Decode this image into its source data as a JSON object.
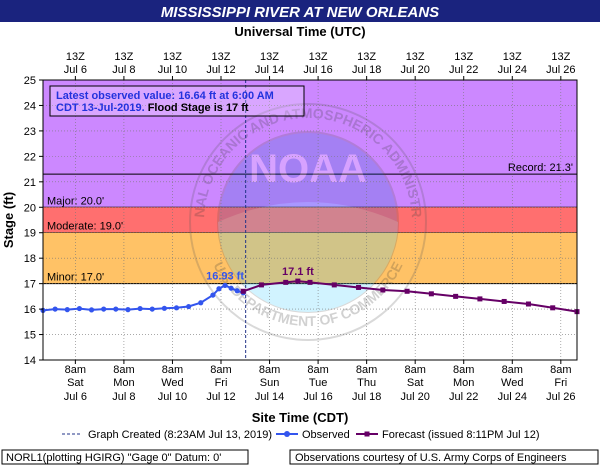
{
  "chart_data": {
    "type": "line",
    "title": "MISSISSIPPI RIVER AT NEW ORLEANS",
    "top_axis_title": "Universal Time (UTC)",
    "xlabel": "Site Time (CDT)",
    "ylabel": "Stage (ft)",
    "ylim": [
      14,
      25
    ],
    "y_ticks": [
      "14",
      "15",
      "16",
      "17",
      "18",
      "19",
      "20",
      "21",
      "22",
      "23",
      "24",
      "25"
    ],
    "x_range_days": [
      "2019-07-05",
      "2019-07-27"
    ],
    "bottom_ticks": [
      {
        "time": "8am",
        "day": "Sat",
        "date": "Jul 6"
      },
      {
        "time": "8am",
        "day": "Mon",
        "date": "Jul 8"
      },
      {
        "time": "8am",
        "day": "Wed",
        "date": "Jul 10"
      },
      {
        "time": "8am",
        "day": "Fri",
        "date": "Jul 12"
      },
      {
        "time": "8am",
        "day": "Sun",
        "date": "Jul 14"
      },
      {
        "time": "8am",
        "day": "Tue",
        "date": "Jul 16"
      },
      {
        "time": "8am",
        "day": "Thu",
        "date": "Jul 18"
      },
      {
        "time": "8am",
        "day": "Sat",
        "date": "Jul 20"
      },
      {
        "time": "8am",
        "day": "Mon",
        "date": "Jul 22"
      },
      {
        "time": "8am",
        "day": "Wed",
        "date": "Jul 24"
      },
      {
        "time": "8am",
        "day": "Fri",
        "date": "Jul 26"
      }
    ],
    "top_ticks": [
      {
        "time": "13Z",
        "date": "Jul 6"
      },
      {
        "time": "13Z",
        "date": "Jul 8"
      },
      {
        "time": "13Z",
        "date": "Jul 10"
      },
      {
        "time": "13Z",
        "date": "Jul 12"
      },
      {
        "time": "13Z",
        "date": "Jul 14"
      },
      {
        "time": "13Z",
        "date": "Jul 16"
      },
      {
        "time": "13Z",
        "date": "Jul 18"
      },
      {
        "time": "13Z",
        "date": "Jul 20"
      },
      {
        "time": "13Z",
        "date": "Jul 22"
      },
      {
        "time": "13Z",
        "date": "Jul 24"
      },
      {
        "time": "13Z",
        "date": "Jul 26"
      }
    ],
    "flood_categories": [
      {
        "label": "Major: 20.0'",
        "from": 20.0,
        "to": 25,
        "color": "#cc88ff"
      },
      {
        "label": "Moderate: 19.0'",
        "from": 19.0,
        "to": 20.0,
        "color": "#ff6f6f"
      },
      {
        "label": "Minor: 17.0'",
        "from": 17.0,
        "to": 19.0,
        "color": "#ffc266"
      }
    ],
    "record": {
      "label": "Record: 21.3'",
      "value": 21.3
    },
    "graph_created": "2019-07-13 08:23",
    "observed": {
      "name": "Observed",
      "color": "#3355ee",
      "points": [
        [
          "2019-07-05 00:00",
          15.95
        ],
        [
          "2019-07-05 12:00",
          16.0
        ],
        [
          "2019-07-06 00:00",
          15.98
        ],
        [
          "2019-07-06 12:00",
          16.02
        ],
        [
          "2019-07-07 00:00",
          15.97
        ],
        [
          "2019-07-07 12:00",
          16.0
        ],
        [
          "2019-07-08 00:00",
          16.0
        ],
        [
          "2019-07-08 12:00",
          15.98
        ],
        [
          "2019-07-09 00:00",
          16.02
        ],
        [
          "2019-07-09 12:00",
          16.0
        ],
        [
          "2019-07-10 00:00",
          16.03
        ],
        [
          "2019-07-10 12:00",
          16.05
        ],
        [
          "2019-07-11 00:00",
          16.1
        ],
        [
          "2019-07-11 12:00",
          16.25
        ],
        [
          "2019-07-12 00:00",
          16.55
        ],
        [
          "2019-07-12 06:00",
          16.8
        ],
        [
          "2019-07-12 12:00",
          16.93
        ],
        [
          "2019-07-12 18:00",
          16.82
        ],
        [
          "2019-07-13 00:00",
          16.72
        ],
        [
          "2019-07-13 06:00",
          16.64
        ]
      ]
    },
    "forecast": {
      "name": "Forecast (issued 8:11PM Jul 12)",
      "color": "#660066",
      "points": [
        [
          "2019-07-13 06:00",
          16.7
        ],
        [
          "2019-07-14 00:00",
          16.95
        ],
        [
          "2019-07-15 00:00",
          17.05
        ],
        [
          "2019-07-15 12:00",
          17.1
        ],
        [
          "2019-07-16 00:00",
          17.05
        ],
        [
          "2019-07-17 00:00",
          16.95
        ],
        [
          "2019-07-18 00:00",
          16.85
        ],
        [
          "2019-07-19 00:00",
          16.75
        ],
        [
          "2019-07-20 00:00",
          16.7
        ],
        [
          "2019-07-21 00:00",
          16.6
        ],
        [
          "2019-07-22 00:00",
          16.5
        ],
        [
          "2019-07-23 00:00",
          16.4
        ],
        [
          "2019-07-24 00:00",
          16.3
        ],
        [
          "2019-07-25 00:00",
          16.2
        ],
        [
          "2019-07-26 00:00",
          16.05
        ],
        [
          "2019-07-27 00:00",
          15.9
        ]
      ]
    },
    "annotations": {
      "observed_peak": {
        "label": "16.93 ft",
        "time": "2019-07-12 12:00",
        "value": 16.93
      },
      "forecast_peak": {
        "label": "17.1 ft",
        "time": "2019-07-15 12:00",
        "value": 17.1
      }
    },
    "info_box": {
      "line1": "Latest observed value: 16.64 ft at 6:00 AM",
      "line2a": "CDT 13-Jul-2019.",
      "line2b": " Flood Stage is 17 ft"
    },
    "legend": {
      "graph_created": "Graph Created (8:23AM Jul 13, 2019)",
      "observed": "Observed",
      "forecast": "Forecast (issued 8:11PM Jul 12)"
    },
    "footer_left": "NORL1(plotting HGIRG) \"Gage 0\" Datum: 0'",
    "footer_right": "Observations courtesy of U.S. Army Corps of Engineers",
    "watermark_text": "NATIONAL OCEANIC AND ATMOSPHERIC ADMINISTRATION",
    "watermark_text2": "U.S. DEPARTMENT OF COMMERCE",
    "watermark_logo": "NOAA"
  }
}
